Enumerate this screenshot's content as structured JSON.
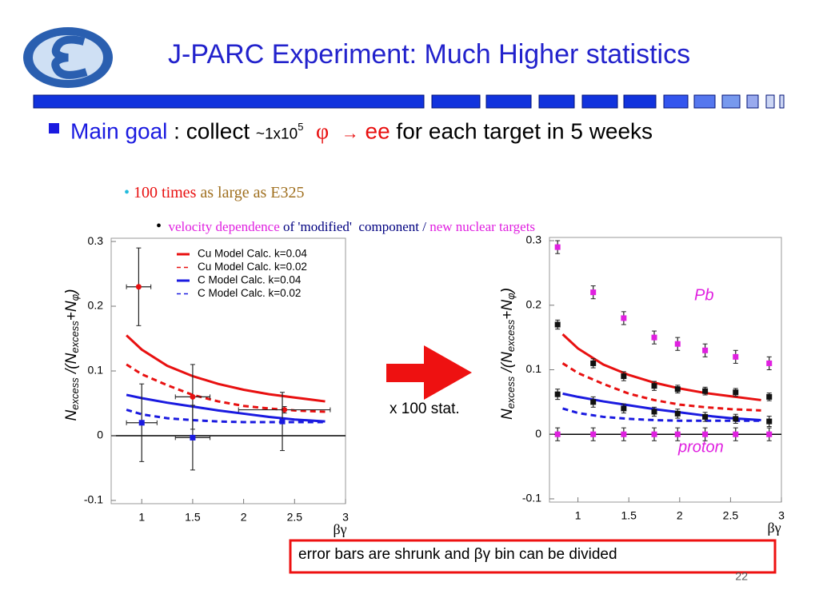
{
  "title": "J-PARC Experiment: Much Higher statistics",
  "bullet": {
    "label": "Main goal",
    "text1": "  : collect ",
    "amount": "~1x10",
    "exponent": "5",
    "phi": "φ",
    "arrow": "→",
    "ee": "ee",
    "text2": " for each target in 5 weeks"
  },
  "sub_bullet": {
    "emph": "100 times",
    "text": " as large as E325"
  },
  "sub_sub_bullet": {
    "a": "velocity dependence",
    "b": " of 'modified'  component / ",
    "c": "new nuclear targets"
  },
  "arrow_label": "x 100 stat.",
  "note": "error bars are shrunk and βγ bin can be divided",
  "page_number": "22",
  "chart_data": [
    {
      "type": "errorbar",
      "xlabel": "βγ",
      "ylabel": [
        "N",
        "excess",
        " /(N",
        "excess",
        "+N",
        "φ",
        ")"
      ],
      "xlim": [
        0.7,
        3
      ],
      "ylim": [
        -0.105,
        0.305
      ],
      "xticks": [
        1,
        1.5,
        2,
        2.5,
        3
      ],
      "yticks": [
        0.3,
        0.2,
        0.1,
        0,
        -0.1
      ],
      "legend": "upper right",
      "series": [
        {
          "name": "Cu Model Calc. k=0.04",
          "kind": "line",
          "color": "#e81010",
          "dashed": false,
          "x": [
            0.85,
            1,
            1.25,
            1.5,
            1.75,
            2,
            2.25,
            2.5,
            2.8
          ],
          "values": [
            0.155,
            0.133,
            0.108,
            0.092,
            0.08,
            0.071,
            0.064,
            0.059,
            0.053
          ]
        },
        {
          "name": "Cu Model Calc. k=0.02",
          "kind": "line",
          "color": "#e81010",
          "dashed": true,
          "x": [
            0.85,
            1,
            1.25,
            1.5,
            1.75,
            2,
            2.25,
            2.5,
            2.8
          ],
          "values": [
            0.11,
            0.095,
            0.078,
            0.063,
            0.053,
            0.046,
            0.042,
            0.039,
            0.037
          ]
        },
        {
          "name": "C  Model Calc. k=0.04",
          "kind": "line",
          "color": "#1a1ae0",
          "dashed": false,
          "x": [
            0.85,
            1,
            1.25,
            1.5,
            1.75,
            2,
            2.25,
            2.5,
            2.8
          ],
          "values": [
            0.063,
            0.058,
            0.051,
            0.045,
            0.039,
            0.034,
            0.029,
            0.025,
            0.022
          ]
        },
        {
          "name": "C  Model Calc. k=0.02",
          "kind": "line",
          "color": "#1a1ae0",
          "dashed": true,
          "x": [
            0.85,
            1,
            1.25,
            1.5,
            1.75,
            2,
            2.25,
            2.5,
            2.8
          ],
          "values": [
            0.04,
            0.033,
            0.027,
            0.024,
            0.022,
            0.021,
            0.021,
            0.021,
            0.021
          ]
        },
        {
          "kind": "points",
          "marker": "circle",
          "color": "#e81010",
          "x": [
            0.97,
            1.5,
            2.4
          ],
          "values": [
            0.23,
            0.06,
            0.04
          ],
          "yerr": [
            0.06,
            0.05,
            0.005
          ],
          "xerr": [
            0.12,
            0.17,
            0.45
          ]
        },
        {
          "kind": "points",
          "marker": "square",
          "color": "#1a1ae0",
          "x": [
            1,
            1.5,
            2.38
          ],
          "values": [
            0.02,
            -0.003,
            0.022
          ],
          "yerr": [
            0.06,
            0.05,
            0.045
          ],
          "xerr": [
            0.15,
            0.17,
            0.02
          ]
        }
      ]
    },
    {
      "type": "errorbar",
      "xlabel": "βγ",
      "ylabel": [
        "N",
        "excess",
        " /(N",
        "excess",
        "+N",
        "φ",
        ")"
      ],
      "xlim": [
        0.72,
        3
      ],
      "ylim": [
        -0.105,
        0.305
      ],
      "xticks": [
        1,
        1.5,
        2,
        2.5,
        3
      ],
      "yticks": [
        0.3,
        0.2,
        0.1,
        0,
        -0.1
      ],
      "annotations": [
        "Pb",
        "proton"
      ],
      "annotation_color": "#e020e0",
      "series": [
        {
          "kind": "line",
          "color": "#e81010",
          "dashed": false,
          "x": [
            0.85,
            1,
            1.25,
            1.5,
            1.75,
            2,
            2.25,
            2.5,
            2.8
          ],
          "values": [
            0.155,
            0.133,
            0.108,
            0.092,
            0.08,
            0.071,
            0.064,
            0.059,
            0.053
          ]
        },
        {
          "kind": "line",
          "color": "#e81010",
          "dashed": true,
          "x": [
            0.85,
            1,
            1.25,
            1.5,
            1.75,
            2,
            2.25,
            2.5,
            2.8
          ],
          "values": [
            0.11,
            0.095,
            0.078,
            0.063,
            0.053,
            0.046,
            0.042,
            0.039,
            0.037
          ]
        },
        {
          "kind": "line",
          "color": "#1a1ae0",
          "dashed": false,
          "x": [
            0.85,
            1,
            1.25,
            1.5,
            1.75,
            2,
            2.25,
            2.5,
            2.8
          ],
          "values": [
            0.063,
            0.058,
            0.051,
            0.045,
            0.039,
            0.034,
            0.029,
            0.025,
            0.022
          ]
        },
        {
          "kind": "line",
          "color": "#1a1ae0",
          "dashed": true,
          "x": [
            0.85,
            1,
            1.25,
            1.5,
            1.75,
            2,
            2.25,
            2.5,
            2.8
          ],
          "values": [
            0.04,
            0.033,
            0.027,
            0.024,
            0.022,
            0.021,
            0.021,
            0.021,
            0.021
          ]
        },
        {
          "kind": "points",
          "marker": "square",
          "color": "#e020e0",
          "x": [
            0.8,
            1.15,
            1.45,
            1.75,
            1.98,
            2.25,
            2.55,
            2.88
          ],
          "values": [
            0.29,
            0.22,
            0.18,
            0.15,
            0.14,
            0.13,
            0.12,
            0.11
          ],
          "yerr": [
            0.01,
            0.01,
            0.01,
            0.01,
            0.01,
            0.01,
            0.01,
            0.01
          ]
        },
        {
          "kind": "points",
          "marker": "square",
          "color": "#111111",
          "x": [
            0.8,
            1.15,
            1.45,
            1.75,
            1.98,
            2.25,
            2.55,
            2.88
          ],
          "values": [
            0.17,
            0.11,
            0.09,
            0.075,
            0.07,
            0.067,
            0.065,
            0.058
          ],
          "yerr": [
            0.007,
            0.007,
            0.007,
            0.007,
            0.006,
            0.006,
            0.006,
            0.006
          ]
        },
        {
          "kind": "points",
          "marker": "square",
          "color": "#111111",
          "x": [
            0.8,
            1.15,
            1.45,
            1.75,
            1.98,
            2.25,
            2.55,
            2.88
          ],
          "values": [
            0.062,
            0.05,
            0.04,
            0.035,
            0.032,
            0.027,
            0.024,
            0.02
          ],
          "yerr": [
            0.008,
            0.008,
            0.007,
            0.007,
            0.007,
            0.007,
            0.007,
            0.008
          ]
        },
        {
          "kind": "points",
          "marker": "square",
          "color": "#e020e0",
          "x": [
            0.8,
            1.15,
            1.45,
            1.75,
            1.98,
            2.25,
            2.55,
            2.88
          ],
          "values": [
            0,
            0,
            0,
            0,
            0,
            0,
            0,
            0
          ],
          "yerr": [
            0.01,
            0.01,
            0.01,
            0.01,
            0.01,
            0.01,
            0.01,
            0.01
          ]
        }
      ]
    }
  ]
}
